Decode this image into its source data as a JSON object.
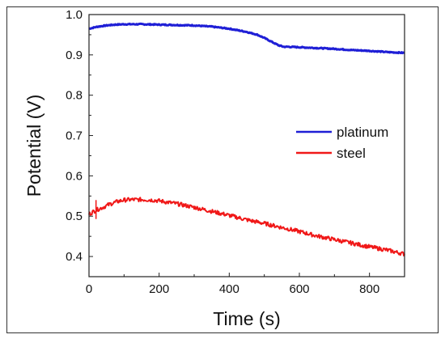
{
  "chart_data": {
    "type": "line",
    "title": "",
    "xlabel": "Time (s)",
    "ylabel": "Potential (V)",
    "xlim": [
      0,
      900
    ],
    "ylim": [
      0.35,
      1.0
    ],
    "xticks": [
      0,
      200,
      400,
      600,
      800
    ],
    "xtick_labels": [
      "0",
      "200",
      "400",
      "600",
      "800"
    ],
    "yticks": [
      0.4,
      0.5,
      0.6,
      0.7,
      0.8,
      0.9,
      1.0
    ],
    "ytick_labels": [
      "0.4",
      "0.5",
      "0.6",
      "0.7",
      "0.8",
      "0.9",
      "1.0"
    ],
    "grid": false,
    "legend_position": "middle-right",
    "series": [
      {
        "name": "platinum",
        "color": "#1f1fd6",
        "x": [
          0,
          25,
          50,
          75,
          100,
          150,
          200,
          250,
          300,
          350,
          400,
          450,
          480,
          500,
          520,
          540,
          555,
          570,
          600,
          650,
          700,
          750,
          800,
          850,
          900
        ],
        "y": [
          0.965,
          0.97,
          0.973,
          0.975,
          0.976,
          0.976,
          0.975,
          0.974,
          0.973,
          0.97,
          0.965,
          0.957,
          0.95,
          0.942,
          0.933,
          0.924,
          0.92,
          0.92,
          0.919,
          0.917,
          0.915,
          0.912,
          0.91,
          0.907,
          0.905
        ]
      },
      {
        "name": "steel",
        "color": "#f01818",
        "x": [
          0,
          20,
          40,
          60,
          80,
          100,
          120,
          140,
          160,
          180,
          200,
          250,
          300,
          350,
          400,
          450,
          500,
          550,
          600,
          650,
          700,
          750,
          800,
          850,
          900
        ],
        "y": [
          0.505,
          0.515,
          0.522,
          0.53,
          0.536,
          0.54,
          0.541,
          0.541,
          0.541,
          0.54,
          0.538,
          0.531,
          0.522,
          0.512,
          0.502,
          0.491,
          0.482,
          0.472,
          0.462,
          0.451,
          0.442,
          0.433,
          0.424,
          0.416,
          0.406
        ]
      }
    ]
  }
}
